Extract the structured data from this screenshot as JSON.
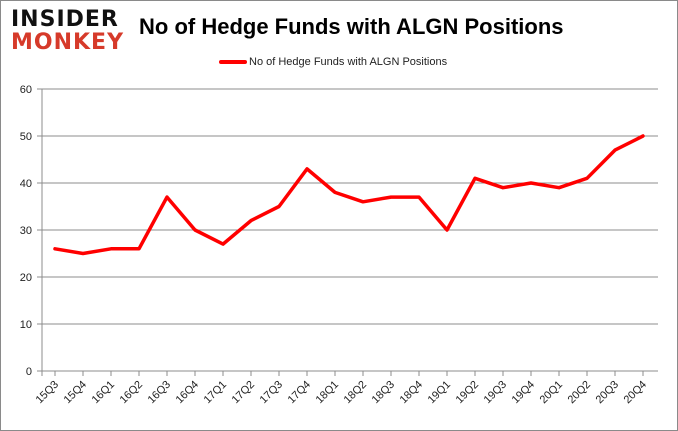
{
  "logo": {
    "line1": "INSIDER",
    "line2": "MONKEY"
  },
  "chart_data": {
    "type": "line",
    "title": "No of Hedge Funds with ALGN Positions",
    "xlabel": "",
    "ylabel": "",
    "ylim": [
      0,
      60
    ],
    "yticks": [
      0,
      10,
      20,
      30,
      40,
      50,
      60
    ],
    "grid": true,
    "legend_position": "top-center",
    "categories": [
      "15Q3",
      "15Q4",
      "16Q1",
      "16Q2",
      "16Q3",
      "16Q4",
      "17Q1",
      "17Q2",
      "17Q3",
      "17Q4",
      "18Q1",
      "18Q2",
      "18Q3",
      "18Q4",
      "19Q1",
      "19Q2",
      "19Q3",
      "19Q4",
      "20Q1",
      "20Q2",
      "20Q3",
      "20Q4"
    ],
    "series": [
      {
        "name": "No of Hedge Funds with ALGN Positions",
        "color": "#ff0000",
        "values": [
          26,
          25,
          26,
          26,
          37,
          30,
          27,
          32,
          35,
          43,
          38,
          36,
          37,
          37,
          30,
          41,
          39,
          40,
          39,
          41,
          47,
          50
        ]
      }
    ]
  }
}
